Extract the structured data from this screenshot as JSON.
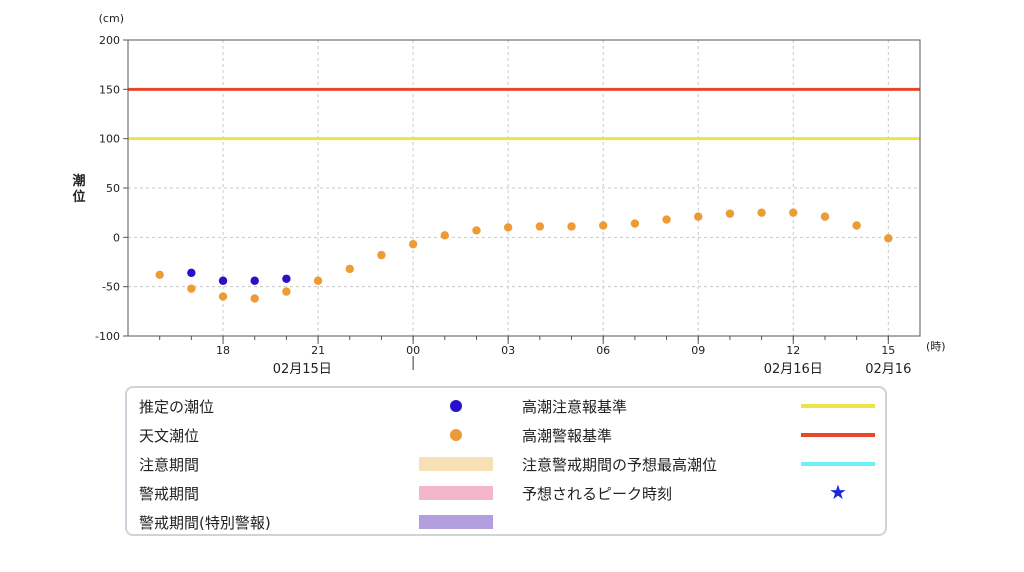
{
  "chart_data": {
    "type": "scatter",
    "y_unit": "(cm)",
    "ylabel": "潮位",
    "x_unit": "(時)",
    "ylim": [
      -100,
      200
    ],
    "yticks": [
      -100,
      -50,
      0,
      50,
      100,
      150,
      200
    ],
    "grid": true,
    "x_start": "02/15 15:00",
    "x_end": "02/16 15:00",
    "xticks": [
      {
        "hour": 18,
        "label": "18"
      },
      {
        "hour": 21,
        "label": "21"
      },
      {
        "hour": 24,
        "label": "00"
      },
      {
        "hour": 27,
        "label": "03"
      },
      {
        "hour": 30,
        "label": "06"
      },
      {
        "hour": 33,
        "label": "09"
      },
      {
        "hour": 36,
        "label": "12"
      },
      {
        "hour": 39,
        "label": "15"
      }
    ],
    "date_labels": [
      {
        "hour": 20.5,
        "label": "02月15日"
      },
      {
        "hour": 36,
        "label": "02月16日"
      },
      {
        "hour": 39,
        "label": "02月16"
      }
    ],
    "reference_lines": [
      {
        "name": "高潮警報基準",
        "value": 150,
        "color": "#e8472a"
      },
      {
        "name": "高潮注意報基準",
        "value": 100,
        "color": "#ede44a"
      }
    ],
    "series": [
      {
        "name": "推定の潮位",
        "color": "#2a10c8",
        "points": [
          {
            "hour": 17,
            "y": -36
          },
          {
            "hour": 18,
            "y": -44
          },
          {
            "hour": 19,
            "y": -44
          },
          {
            "hour": 20,
            "y": -42
          }
        ]
      },
      {
        "name": "天文潮位",
        "color": "#ec9b35",
        "points": [
          {
            "hour": 16,
            "y": -38
          },
          {
            "hour": 17,
            "y": -52
          },
          {
            "hour": 18,
            "y": -60
          },
          {
            "hour": 19,
            "y": -62
          },
          {
            "hour": 20,
            "y": -55
          },
          {
            "hour": 21,
            "y": -44
          },
          {
            "hour": 22,
            "y": -32
          },
          {
            "hour": 23,
            "y": -18
          },
          {
            "hour": 24,
            "y": -7
          },
          {
            "hour": 25,
            "y": 2
          },
          {
            "hour": 26,
            "y": 7
          },
          {
            "hour": 27,
            "y": 10
          },
          {
            "hour": 28,
            "y": 11
          },
          {
            "hour": 29,
            "y": 11
          },
          {
            "hour": 30,
            "y": 12
          },
          {
            "hour": 31,
            "y": 14
          },
          {
            "hour": 32,
            "y": 18
          },
          {
            "hour": 33,
            "y": 21
          },
          {
            "hour": 34,
            "y": 24
          },
          {
            "hour": 35,
            "y": 25
          },
          {
            "hour": 36,
            "y": 25
          },
          {
            "hour": 37,
            "y": 21
          },
          {
            "hour": 38,
            "y": 12
          },
          {
            "hour": 39,
            "y": -1
          }
        ]
      }
    ]
  },
  "legend": {
    "left": [
      {
        "label": "推定の潮位",
        "kind": "dot",
        "color": "#2a10c8"
      },
      {
        "label": "天文潮位",
        "kind": "dot",
        "color": "#ec9b35"
      },
      {
        "label": "注意期間",
        "kind": "bar",
        "color": "#f7dfb6"
      },
      {
        "label": "警戒期間",
        "kind": "bar",
        "color": "#f4b6cb"
      },
      {
        "label": "警戒期間(特別警報)",
        "kind": "bar",
        "color": "#b29ddf"
      }
    ],
    "right": [
      {
        "label": "高潮注意報基準",
        "kind": "line",
        "color": "#ede44a"
      },
      {
        "label": "高潮警報基準",
        "kind": "line",
        "color": "#e8472a"
      },
      {
        "label": "注意警戒期間の予想最高潮位",
        "kind": "line",
        "color": "#6af0f5"
      },
      {
        "label": "予想されるピーク時刻",
        "kind": "star",
        "color": "#1a2ad8",
        "glyph": "★"
      }
    ]
  }
}
